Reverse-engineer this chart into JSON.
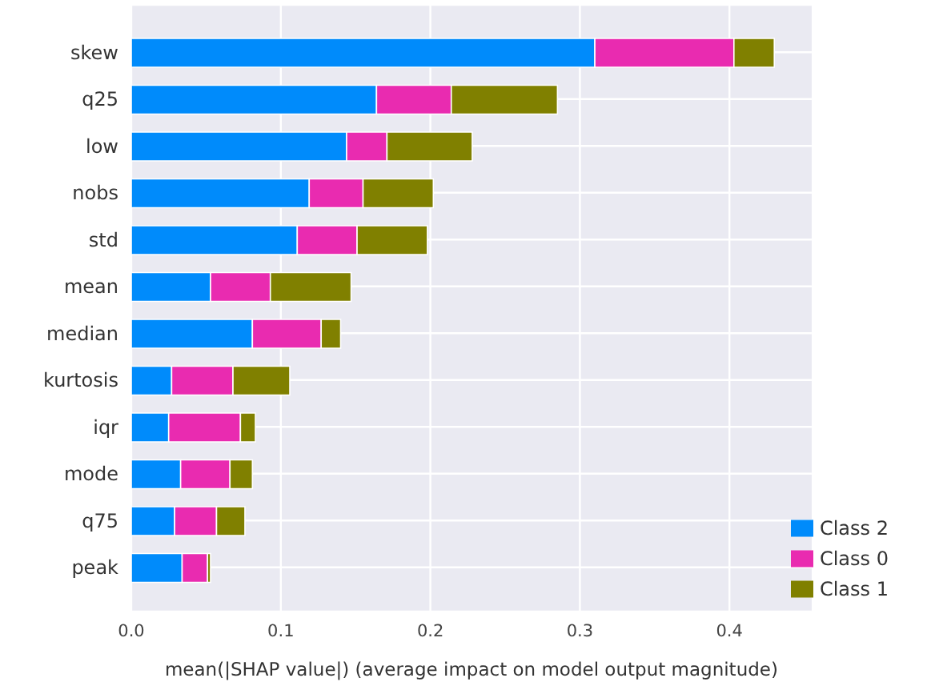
{
  "chart_data": {
    "type": "bar",
    "orientation": "horizontal",
    "stacked": true,
    "categories": [
      "skew",
      "q25",
      "low",
      "nobs",
      "std",
      "mean",
      "median",
      "kurtosis",
      "iqr",
      "mode",
      "q75",
      "peak"
    ],
    "series": [
      {
        "name": "Class 2",
        "color": "#008bfb",
        "values": [
          0.31,
          0.164,
          0.144,
          0.119,
          0.111,
          0.053,
          0.081,
          0.027,
          0.025,
          0.033,
          0.029,
          0.034
        ]
      },
      {
        "name": "Class 0",
        "color": "#e92bb0",
        "values": [
          0.093,
          0.05,
          0.027,
          0.036,
          0.04,
          0.04,
          0.046,
          0.041,
          0.048,
          0.033,
          0.028,
          0.017
        ]
      },
      {
        "name": "Class 1",
        "color": "#808000",
        "values": [
          0.027,
          0.071,
          0.057,
          0.047,
          0.047,
          0.054,
          0.013,
          0.038,
          0.01,
          0.015,
          0.019,
          0.002
        ]
      }
    ],
    "xlim": [
      0,
      0.455
    ],
    "xticks": [
      {
        "value": 0,
        "label": "0.0"
      },
      0.1,
      0.2,
      0.3,
      0.4
    ],
    "xlabel": "mean(|SHAP value|) (average impact on model output magnitude)",
    "grid": true,
    "legend": "bottom right"
  }
}
